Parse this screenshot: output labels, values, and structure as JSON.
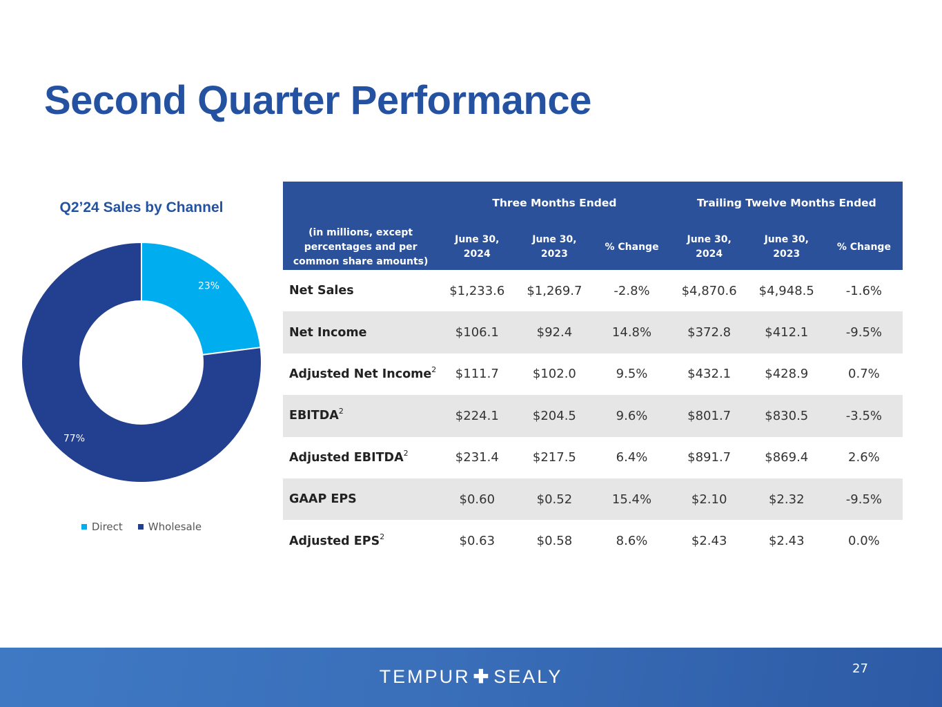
{
  "slide": {
    "title": "Second Quarter Performance",
    "page_number": "27"
  },
  "chart_data": {
    "type": "pie",
    "title": "Q2’24 Sales by Channel",
    "categories": [
      "Direct",
      "Wholesale"
    ],
    "values": [
      23,
      77
    ],
    "labels": [
      "23%",
      "77%"
    ],
    "colors": [
      "#00aeef",
      "#233f8f"
    ],
    "legend_position": "bottom"
  },
  "table": {
    "group_headers": [
      "Three Months Ended",
      "Trailing Twelve Months Ended"
    ],
    "row_header": "(in millions, except percentages and per common share amounts)",
    "columns": [
      "June 30, 2024",
      "June 30, 2023",
      "% Change",
      "June 30, 2024",
      "June 30, 2023",
      "% Change"
    ],
    "rows": [
      {
        "label": "Net Sales",
        "sup": "",
        "values": [
          "$1,233.6",
          "$1,269.7",
          "-2.8%",
          "$4,870.6",
          "$4,948.5",
          "-1.6%"
        ]
      },
      {
        "label": "Net Income",
        "sup": "",
        "values": [
          "$106.1",
          "$92.4",
          "14.8%",
          "$372.8",
          "$412.1",
          "-9.5%"
        ]
      },
      {
        "label": "Adjusted Net Income",
        "sup": "2",
        "values": [
          "$111.7",
          "$102.0",
          "9.5%",
          "$432.1",
          "$428.9",
          "0.7%"
        ]
      },
      {
        "label": "EBITDA",
        "sup": "2",
        "values": [
          "$224.1",
          "$204.5",
          "9.6%",
          "$801.7",
          "$830.5",
          "-3.5%"
        ]
      },
      {
        "label": "Adjusted EBITDA",
        "sup": "2",
        "values": [
          "$231.4",
          "$217.5",
          "6.4%",
          "$891.7",
          "$869.4",
          "2.6%"
        ]
      },
      {
        "label": "GAAP EPS",
        "sup": "",
        "values": [
          "$0.60",
          "$0.52",
          "15.4%",
          "$2.10",
          "$2.32",
          "-9.5%"
        ]
      },
      {
        "label": "Adjusted EPS",
        "sup": "2",
        "values": [
          "$0.63",
          "$0.58",
          "8.6%",
          "$2.43",
          "$2.43",
          "0.0%"
        ]
      }
    ]
  },
  "footer": {
    "brand_left": "TEMPUR",
    "brand_sep": "✚",
    "brand_right": "SEALY"
  }
}
